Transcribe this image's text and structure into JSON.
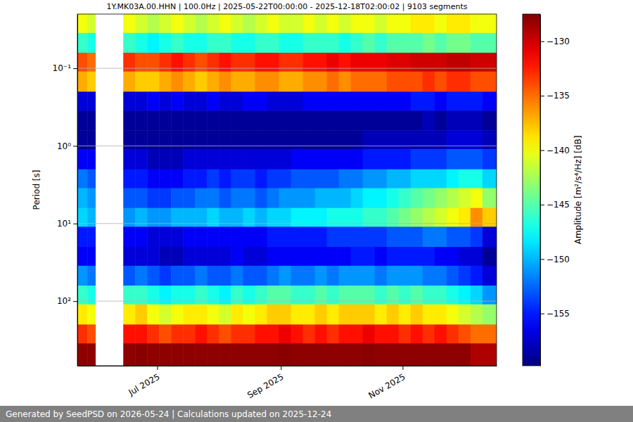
{
  "chart_data": {
    "type": "heatmap",
    "title": "1Y.MK03A.00.HHN | 100.0Hz | 2025-05-22T00:00:00 - 2025-12-18T02:00:02 | 9103 segments",
    "y_label": "Period [s]",
    "footer": "Generated by SeedPSD on 2026-05-24 | Calculations updated on 2025-12-24",
    "log": "y",
    "grid": true,
    "xlim": [
      "2025-05-22",
      "2025-12-18T02:00:02"
    ],
    "xticks": [
      {
        "value": "2025-07-01",
        "label": "Jul 2025"
      },
      {
        "value": "2025-09-01",
        "label": "Sep 2025"
      },
      {
        "value": "2025-11-01",
        "label": "Nov 2025"
      }
    ],
    "ylim": [
      0.02,
      680
    ],
    "yticks": [
      {
        "value": 0.1,
        "label": "10⁻¹"
      },
      {
        "value": 1,
        "label": "10⁰"
      },
      {
        "value": 10,
        "label": "10¹"
      },
      {
        "value": 100,
        "label": "10²"
      }
    ],
    "x": [
      "2025-05-22",
      "2025-05-27",
      "2025-05-31",
      "2025-06-14",
      "2025-06-20",
      "2025-06-26",
      "2025-07-02",
      "2025-07-08",
      "2025-07-14",
      "2025-07-20",
      "2025-07-26",
      "2025-08-01",
      "2025-08-07",
      "2025-08-13",
      "2025-08-19",
      "2025-08-25",
      "2025-08-31",
      "2025-09-06",
      "2025-09-12",
      "2025-09-18",
      "2025-09-24",
      "2025-09-30",
      "2025-10-06",
      "2025-10-12",
      "2025-10-18",
      "2025-10-24",
      "2025-10-30",
      "2025-11-05",
      "2025-11-11",
      "2025-11-17",
      "2025-11-23",
      "2025-11-29",
      "2025-12-05",
      "2025-12-11"
    ],
    "period_edges": [
      0.02,
      0.035,
      0.063,
      0.11,
      0.2,
      0.35,
      0.63,
      1.1,
      2,
      3.5,
      6.3,
      11,
      20,
      35,
      63,
      110,
      200,
      350,
      680
    ],
    "values": [
      [
        -140,
        -146,
        -134,
        -137,
        -157,
        -159,
        -159,
        -156,
        -152,
        -150,
        -149,
        -155,
        -156,
        -151,
        -146,
        -139,
        -133,
        -128
      ],
      [
        -141,
        -147,
        -135,
        -138,
        -157,
        -159,
        -159,
        -156,
        -153,
        -151,
        -150,
        -155,
        -156,
        -152,
        -147,
        -140,
        -134,
        -128
      ],
      null,
      [
        -140,
        -146,
        -133,
        -137,
        -157,
        -159,
        -159,
        -157,
        -155,
        -153,
        -151,
        -156,
        -157,
        -153,
        -146,
        -139,
        -132,
        -128
      ],
      [
        -141,
        -147,
        -134,
        -138,
        -157,
        -159,
        -159,
        -157,
        -155,
        -153,
        -150,
        -156,
        -157,
        -152,
        -146,
        -138,
        -132,
        -127.8
      ],
      [
        -142,
        -148,
        -134,
        -138,
        -156,
        -159,
        -159,
        -158,
        -156,
        -154,
        -151,
        -157,
        -157,
        -153,
        -147,
        -140,
        -133,
        -128
      ],
      [
        -141,
        -147,
        -133,
        -137,
        -157,
        -159,
        -159,
        -158,
        -156,
        -154,
        -151,
        -157,
        -158,
        -154,
        -148,
        -141,
        -134,
        -128
      ],
      [
        -140,
        -146,
        -132,
        -136,
        -156,
        -159,
        -159,
        -158,
        -156,
        -153,
        -150,
        -157,
        -158,
        -153,
        -147,
        -140,
        -133,
        -128
      ],
      [
        -141,
        -147,
        -133,
        -137,
        -157,
        -159,
        -159,
        -157,
        -155,
        -153,
        -150,
        -156,
        -157,
        -153,
        -147,
        -139,
        -133,
        -128
      ],
      [
        -142,
        -147,
        -134,
        -138,
        -157,
        -159,
        -159,
        -157,
        -155,
        -152,
        -150,
        -156,
        -157,
        -152,
        -146,
        -139,
        -132,
        -128
      ],
      [
        -141,
        -146,
        -133,
        -137,
        -156,
        -159,
        -159,
        -157,
        -154,
        -152,
        -149,
        -156,
        -157,
        -153,
        -147,
        -140,
        -133,
        -128
      ],
      [
        -140,
        -146,
        -132,
        -136,
        -157,
        -159,
        -159,
        -157,
        -155,
        -153,
        -150,
        -156,
        -157,
        -153,
        -148,
        -141,
        -134,
        -128
      ],
      [
        -141,
        -147,
        -133,
        -137,
        -157,
        -159,
        -159,
        -157,
        -154,
        -152,
        -150,
        -156,
        -156,
        -152,
        -146,
        -139,
        -133,
        -128
      ],
      [
        -142,
        -147,
        -133,
        -137,
        -156,
        -159,
        -159,
        -157,
        -154,
        -152,
        -149,
        -156,
        -157,
        -153,
        -147,
        -140,
        -133,
        -128
      ],
      [
        -141,
        -146,
        -132,
        -136,
        -156,
        -159,
        -159,
        -157,
        -155,
        -153,
        -150,
        -156,
        -157,
        -153,
        -146,
        -139,
        -132,
        -128
      ],
      [
        -140,
        -146,
        -132,
        -136,
        -157,
        -159,
        -159,
        -157,
        -154,
        -152,
        -149,
        -155,
        -156,
        -152,
        -145,
        -138,
        -132,
        -128
      ],
      [
        -141,
        -147,
        -133,
        -137,
        -157,
        -159,
        -159,
        -157,
        -154,
        -151,
        -149,
        -155,
        -156,
        -151,
        -145,
        -138,
        -131,
        -127.8
      ],
      [
        -141,
        -147,
        -133,
        -137,
        -157,
        -159,
        -159,
        -156,
        -153,
        -151,
        -148,
        -155,
        -156,
        -152,
        -146,
        -139,
        -132,
        -128
      ],
      [
        -140,
        -146,
        -132,
        -136,
        -156,
        -159,
        -159,
        -156,
        -153,
        -151,
        -148,
        -155,
        -156,
        -152,
        -146,
        -139,
        -133,
        -128
      ],
      [
        -141,
        -146,
        -132,
        -136,
        -156,
        -159,
        -159,
        -156,
        -153,
        -150,
        -148,
        -155,
        -156,
        -151,
        -145,
        -138,
        -132,
        -128
      ],
      [
        -140,
        -146,
        -131,
        -135,
        -156,
        -159,
        -159,
        -156,
        -153,
        -150,
        -147,
        -154,
        -156,
        -152,
        -146,
        -139,
        -133,
        -128
      ],
      [
        -141,
        -147,
        -132,
        -136,
        -156,
        -159,
        -159,
        -156,
        -152,
        -150,
        -147,
        -154,
        -156,
        -151,
        -145,
        -138,
        -132,
        -128
      ],
      [
        -140,
        -146,
        -131,
        -135,
        -156,
        -159,
        -159,
        -156,
        -152,
        -149,
        -147,
        -154,
        -155,
        -151,
        -145,
        -138,
        -132,
        -128
      ],
      [
        -140,
        -145,
        -131,
        -135,
        -156,
        -159,
        -158,
        -155,
        -151,
        -148,
        -146,
        -154,
        -155,
        -151,
        -145,
        -138,
        -131,
        -127.8
      ],
      [
        -141,
        -146,
        -131,
        -135,
        -156,
        -159,
        -158,
        -155,
        -151,
        -148,
        -146,
        -154,
        -156,
        -152,
        -146,
        -139,
        -132,
        -128
      ],
      [
        -140,
        -145,
        -130.5,
        -134,
        -156,
        -159,
        -158,
        -155,
        -150,
        -147,
        -145,
        -153,
        -155,
        -151,
        -145,
        -138,
        -132,
        -128
      ],
      [
        -140,
        -145,
        -130.5,
        -134,
        -156,
        -159,
        -158,
        -155,
        -150,
        -146,
        -144,
        -153,
        -155,
        -151,
        -146,
        -139,
        -133,
        -128
      ],
      [
        -139,
        -145,
        -130,
        -134,
        -155,
        -159,
        -158,
        -154,
        -149,
        -145,
        -143,
        -153,
        -155,
        -151,
        -145,
        -138,
        -132,
        -128
      ],
      [
        -139,
        -144,
        -130,
        -133,
        -155,
        -158,
        -158,
        -154,
        -149,
        -144,
        -142,
        -152,
        -155,
        -152,
        -146,
        -139,
        -133,
        -128
      ],
      [
        -140,
        -145,
        -130,
        -134,
        -156,
        -159,
        -158,
        -154,
        -149,
        -143,
        -141,
        -152,
        -156,
        -152,
        -146,
        -139,
        -132,
        -128
      ],
      [
        -139,
        -144,
        -129.5,
        -133,
        -155,
        -158,
        -157,
        -153,
        -148,
        -142,
        -140,
        -153,
        -156,
        -153,
        -147,
        -140,
        -133,
        -128
      ],
      [
        -139,
        -144,
        -129.5,
        -133,
        -155,
        -158,
        -157,
        -153,
        -147,
        -141,
        -139,
        -153,
        -157,
        -154,
        -148,
        -141,
        -134,
        -128
      ],
      [
        -140,
        -145,
        -130,
        -134,
        -155,
        -158,
        -157,
        -153,
        -147,
        -140,
        -136,
        -154,
        -157,
        -155,
        -149,
        -142,
        -135,
        -129
      ],
      [
        -140,
        -145,
        -130,
        -134,
        -156,
        -159,
        -158,
        -154,
        -149,
        -143,
        -138,
        -157,
        -159,
        -157,
        -151,
        -143,
        -135,
        -129
      ]
    ],
    "colorbar": {
      "label": "Amplitude [m²/s⁴/Hz] [dB]",
      "range": [
        -159.8,
        -127.5
      ],
      "ticks": [
        {
          "value": -155,
          "label": "−155"
        },
        {
          "value": -150,
          "label": "−150"
        },
        {
          "value": -145,
          "label": "−145"
        },
        {
          "value": -140,
          "label": "−140"
        },
        {
          "value": -135,
          "label": "−135"
        },
        {
          "value": -130,
          "label": "−130"
        }
      ]
    }
  }
}
